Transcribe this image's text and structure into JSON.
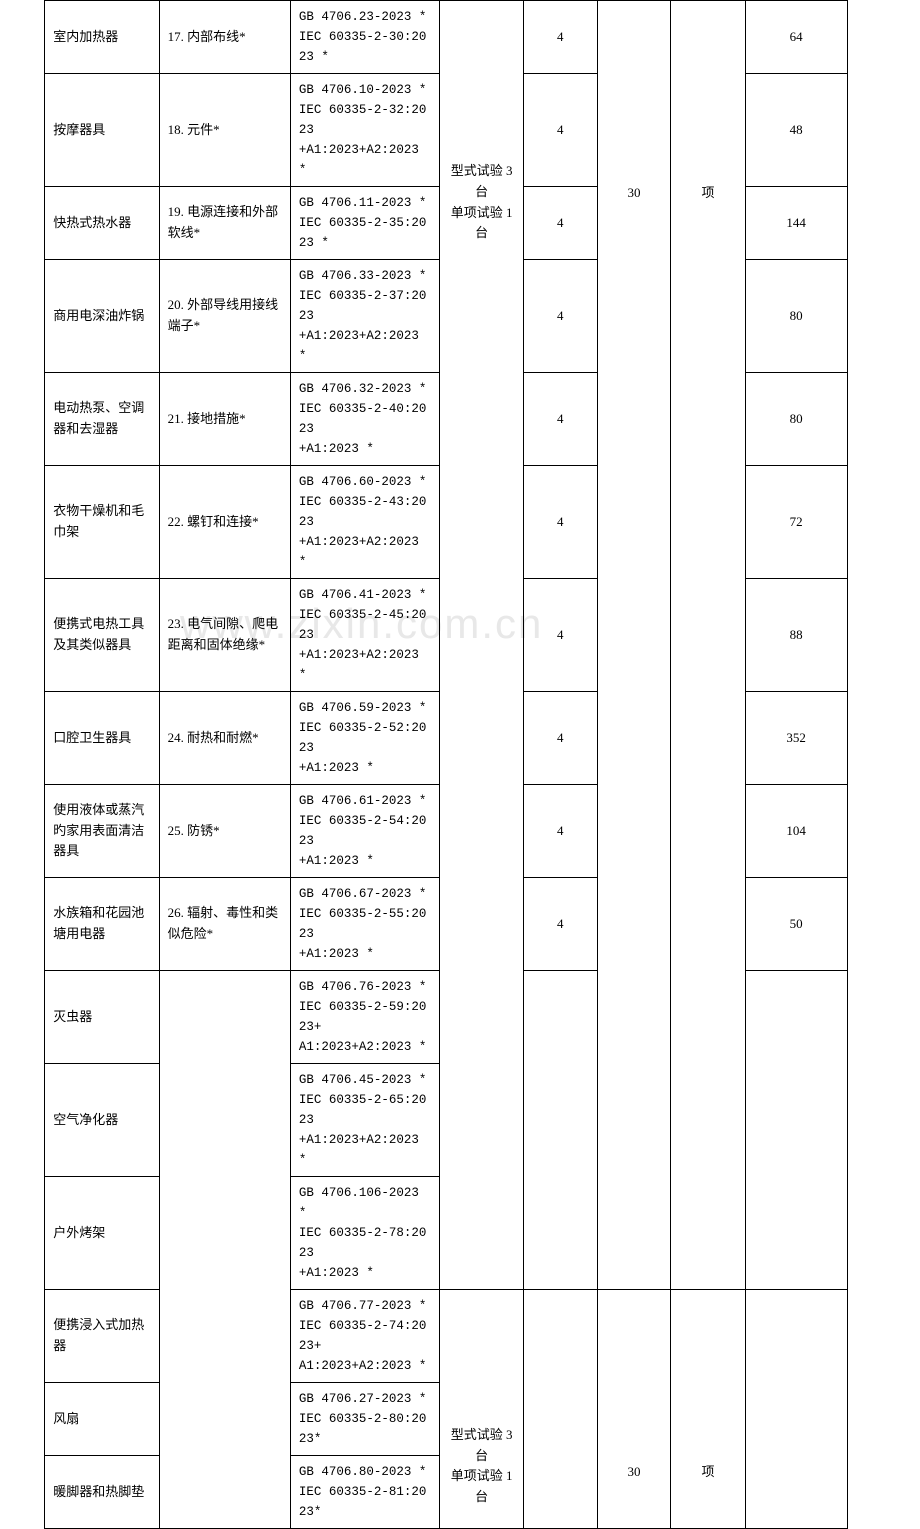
{
  "watermark": "www.zixin.com.cn",
  "col4_group_text": "型式试验 3 台\n单项试验 1 台",
  "col6_val": "30",
  "col7_val": "项",
  "rows": [
    {
      "c1": "室内加热器",
      "c2": "17. 内部布线*",
      "c3": "GB 4706.23-2023 *\nIEC 60335-2-30:2023 *",
      "c5": "4",
      "c8": "64"
    },
    {
      "c1": "按摩器具",
      "c2": "18. 元件*",
      "c3": "GB 4706.10-2023 *\nIEC 60335-2-32:2023\n+A1:2023+A2:2023 *",
      "c5": "4",
      "c8": "48"
    },
    {
      "c1": "快热式热水器",
      "c2": "19. 电源连接和外部软线*",
      "c3": "GB 4706.11-2023 *\nIEC 60335-2-35:2023 *",
      "c5": "4",
      "c8": "144"
    },
    {
      "c1": "商用电深油炸锅",
      "c2": "20. 外部导线用接线端子*",
      "c3": "GB 4706.33-2023 *\nIEC 60335-2-37:2023\n+A1:2023+A2:2023 *",
      "c5": "4",
      "c8": "80"
    },
    {
      "c1": "电动热泵、空调器和去湿器",
      "c2": "21. 接地措施*",
      "c3": "GB 4706.32-2023 *\nIEC 60335-2-40:2023\n+A1:2023 *",
      "c5": "4",
      "c8": "80"
    },
    {
      "c1": "衣物干燥机和毛巾架",
      "c2": "22. 螺钉和连接*",
      "c3": "GB 4706.60-2023 *\nIEC 60335-2-43:2023\n+A1:2023+A2:2023 *",
      "c5": "4",
      "c8": "72"
    },
    {
      "c1": "便携式电热工具及其类似器具",
      "c2": "23. 电气间隙、爬电距离和固体绝缘*",
      "c3": "GB 4706.41-2023 *\nIEC 60335-2-45:2023\n+A1:2023+A2:2023 *",
      "c5": "4",
      "c8": "88"
    },
    {
      "c1": "口腔卫生器具",
      "c2": "24. 耐热和耐燃*",
      "c3": "GB 4706.59-2023 *\nIEC 60335-2-52:2023\n+A1:2023 *",
      "c5": "4",
      "c8": "352"
    },
    {
      "c1": "使用液体或蒸汽旳家用表面清洁器具",
      "c2": "25. 防锈*",
      "c3": "GB 4706.61-2023 *\nIEC 60335-2-54:2023\n+A1:2023 *",
      "c5": "4",
      "c8": "104"
    },
    {
      "c1": "水族箱和花园池塘用电器",
      "c2": "26. 辐射、毒性和类似危险*",
      "c3": "GB 4706.67-2023 *\nIEC 60335-2-55:2023\n+A1:2023 *",
      "c5": "4",
      "c8": "50"
    },
    {
      "c1": "灭虫器",
      "c2": "",
      "c3": "GB 4706.76-2023 *\nIEC 60335-2-59:2023+\nA1:2023+A2:2023 *",
      "c5": "",
      "c8": ""
    },
    {
      "c1": "空气净化器",
      "c2": "",
      "c3": "GB 4706.45-2023 *\nIEC 60335-2-65:2023\n+A1:2023+A2:2023 *",
      "c5": "",
      "c8": ""
    },
    {
      "c1": "户外烤架",
      "c2": "",
      "c3": "GB 4706.106-2023 *\nIEC 60335-2-78:2023\n+A1:2023 *",
      "c5": "",
      "c8": ""
    },
    {
      "c1": "便携浸入式加热器",
      "c2": "",
      "c3": "GB 4706.77-2023 *\nIEC 60335-2-74:2023+\nA1:2023+A2:2023 *",
      "c5": "",
      "c8": ""
    },
    {
      "c1": "风扇",
      "c2": "",
      "c3": "GB 4706.27-2023 *\nIEC 60335-2-80:2023*",
      "c5": "",
      "c8": ""
    },
    {
      "c1": "暖脚器和热脚垫",
      "c2": "",
      "c3": "GB 4706.80-2023 *\nIEC 60335-2-81:2023*",
      "c5": "",
      "c8": ""
    }
  ]
}
